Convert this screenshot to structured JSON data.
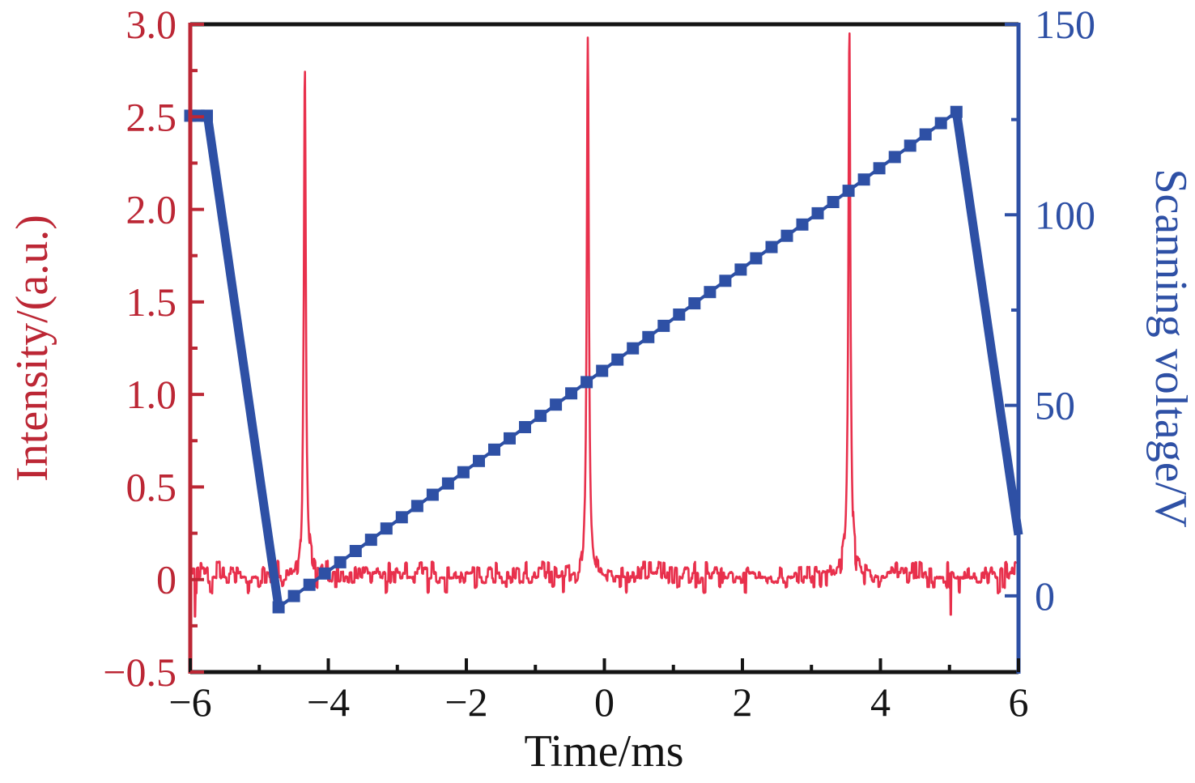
{
  "figure": {
    "background": "#ffffff",
    "frame_color": "#141414"
  },
  "chart_data": {
    "type": "line",
    "title": "",
    "xlabel": "Time/ms",
    "grid": false,
    "legend": null,
    "x_axis": {
      "range": [
        -6,
        6
      ],
      "color": "#141414",
      "major_ticks": [
        {
          "v": -6,
          "label": "−6"
        },
        {
          "v": -4,
          "label": "−4"
        },
        {
          "v": -2,
          "label": "−2"
        },
        {
          "v": 0,
          "label": "0"
        },
        {
          "v": 2,
          "label": "2"
        },
        {
          "v": 4,
          "label": "4"
        },
        {
          "v": 6,
          "label": "6"
        }
      ],
      "minor_ticks": [
        -5,
        -3,
        -1,
        1,
        3,
        5
      ]
    },
    "left_y_axis": {
      "label": "Intensity/(a.u.)",
      "range": [
        -0.5,
        3.0
      ],
      "color": "#bc2735",
      "major_ticks": [
        {
          "v": 3.0,
          "label": "3.0"
        },
        {
          "v": 2.5,
          "label": "2.5"
        },
        {
          "v": 2.0,
          "label": "2.0"
        },
        {
          "v": 1.5,
          "label": "1.5"
        },
        {
          "v": 1.0,
          "label": "1.0"
        },
        {
          "v": 0.5,
          "label": "0.5"
        },
        {
          "v": 0,
          "label": "0"
        },
        {
          "v": -0.5,
          "label": "−0.5"
        }
      ],
      "minor_ticks": [
        2.75,
        2.25,
        1.75,
        1.25,
        0.75,
        0.25,
        -0.25
      ]
    },
    "right_y_axis": {
      "label": "Scanning voltage/V",
      "range": [
        -20,
        150
      ],
      "color": "#2e50a5",
      "major_ticks": [
        {
          "v": 150,
          "label": "150"
        },
        {
          "v": 100,
          "label": "100"
        },
        {
          "v": 50,
          "label": "50"
        },
        {
          "v": 0,
          "label": "0"
        }
      ],
      "minor_ticks": [
        125,
        75,
        25
      ]
    },
    "series": [
      {
        "name": "intensity",
        "axis": "left",
        "color": "#e8304c",
        "style": "noisy_line_with_peaks",
        "baseline_mean": 0.02,
        "baseline_noise_amplitude": 0.05,
        "peak_halfwidth_ms": 0.018,
        "peaks": [
          {
            "t_ms": -4.34,
            "height": 2.79
          },
          {
            "t_ms": -0.24,
            "height": 2.87
          },
          {
            "t_ms": 3.55,
            "height": 2.95
          }
        ],
        "negative_spikes": [
          {
            "t_ms": -5.93,
            "value": -0.2
          },
          {
            "t_ms": 5.02,
            "value": -0.19
          }
        ]
      },
      {
        "name": "scanning_voltage",
        "axis": "right",
        "color": "#2e50a5",
        "style": "sawtooth_with_square_markers",
        "keypoints_t_V": [
          [
            -6,
            126
          ],
          [
            -5.75,
            126
          ],
          [
            -4.72,
            -3
          ],
          [
            5.1,
            127
          ],
          [
            6,
            16
          ]
        ],
        "marker": "square",
        "ascent_marker_count": 45,
        "start_marker_ts": [
          -6.0,
          -5.88,
          -5.76
        ]
      }
    ]
  }
}
